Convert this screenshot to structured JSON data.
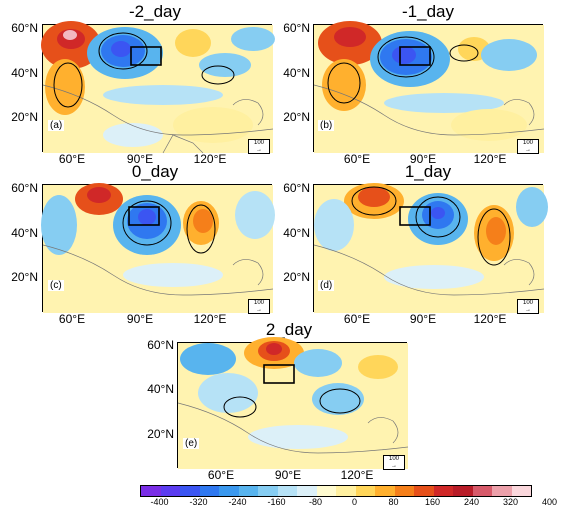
{
  "lat_labels": [
    "60°N",
    "40°N",
    "20°N"
  ],
  "lon_labels": [
    "60°E",
    "90°E",
    "120°E"
  ],
  "reference_vector_label": "100",
  "panels": [
    {
      "title": "-2_day",
      "label": "(a)"
    },
    {
      "title": "-1_day",
      "label": "(b)"
    },
    {
      "title": "0_day",
      "label": "(c)"
    },
    {
      "title": "1_day",
      "label": "(d)"
    },
    {
      "title": "2_day",
      "label": "(e)"
    }
  ],
  "colorbar": {
    "labels": [
      "-400",
      "-320",
      "-240",
      "-160",
      "-80",
      "0",
      "80",
      "160",
      "240",
      "320",
      "400"
    ],
    "colors": [
      "#7a2ee6",
      "#5b3cf0",
      "#3b55f2",
      "#2f78f0",
      "#3a98ee",
      "#58b4ee",
      "#86cdf2",
      "#b6e2f6",
      "#dcf0f8",
      "#fffbd0",
      "#fff0a0",
      "#ffd65a",
      "#ffb02e",
      "#f57f1a",
      "#e6501a",
      "#d02828",
      "#b81c28",
      "#d75a6a",
      "#eca0aa",
      "#fad7dc"
    ]
  }
}
